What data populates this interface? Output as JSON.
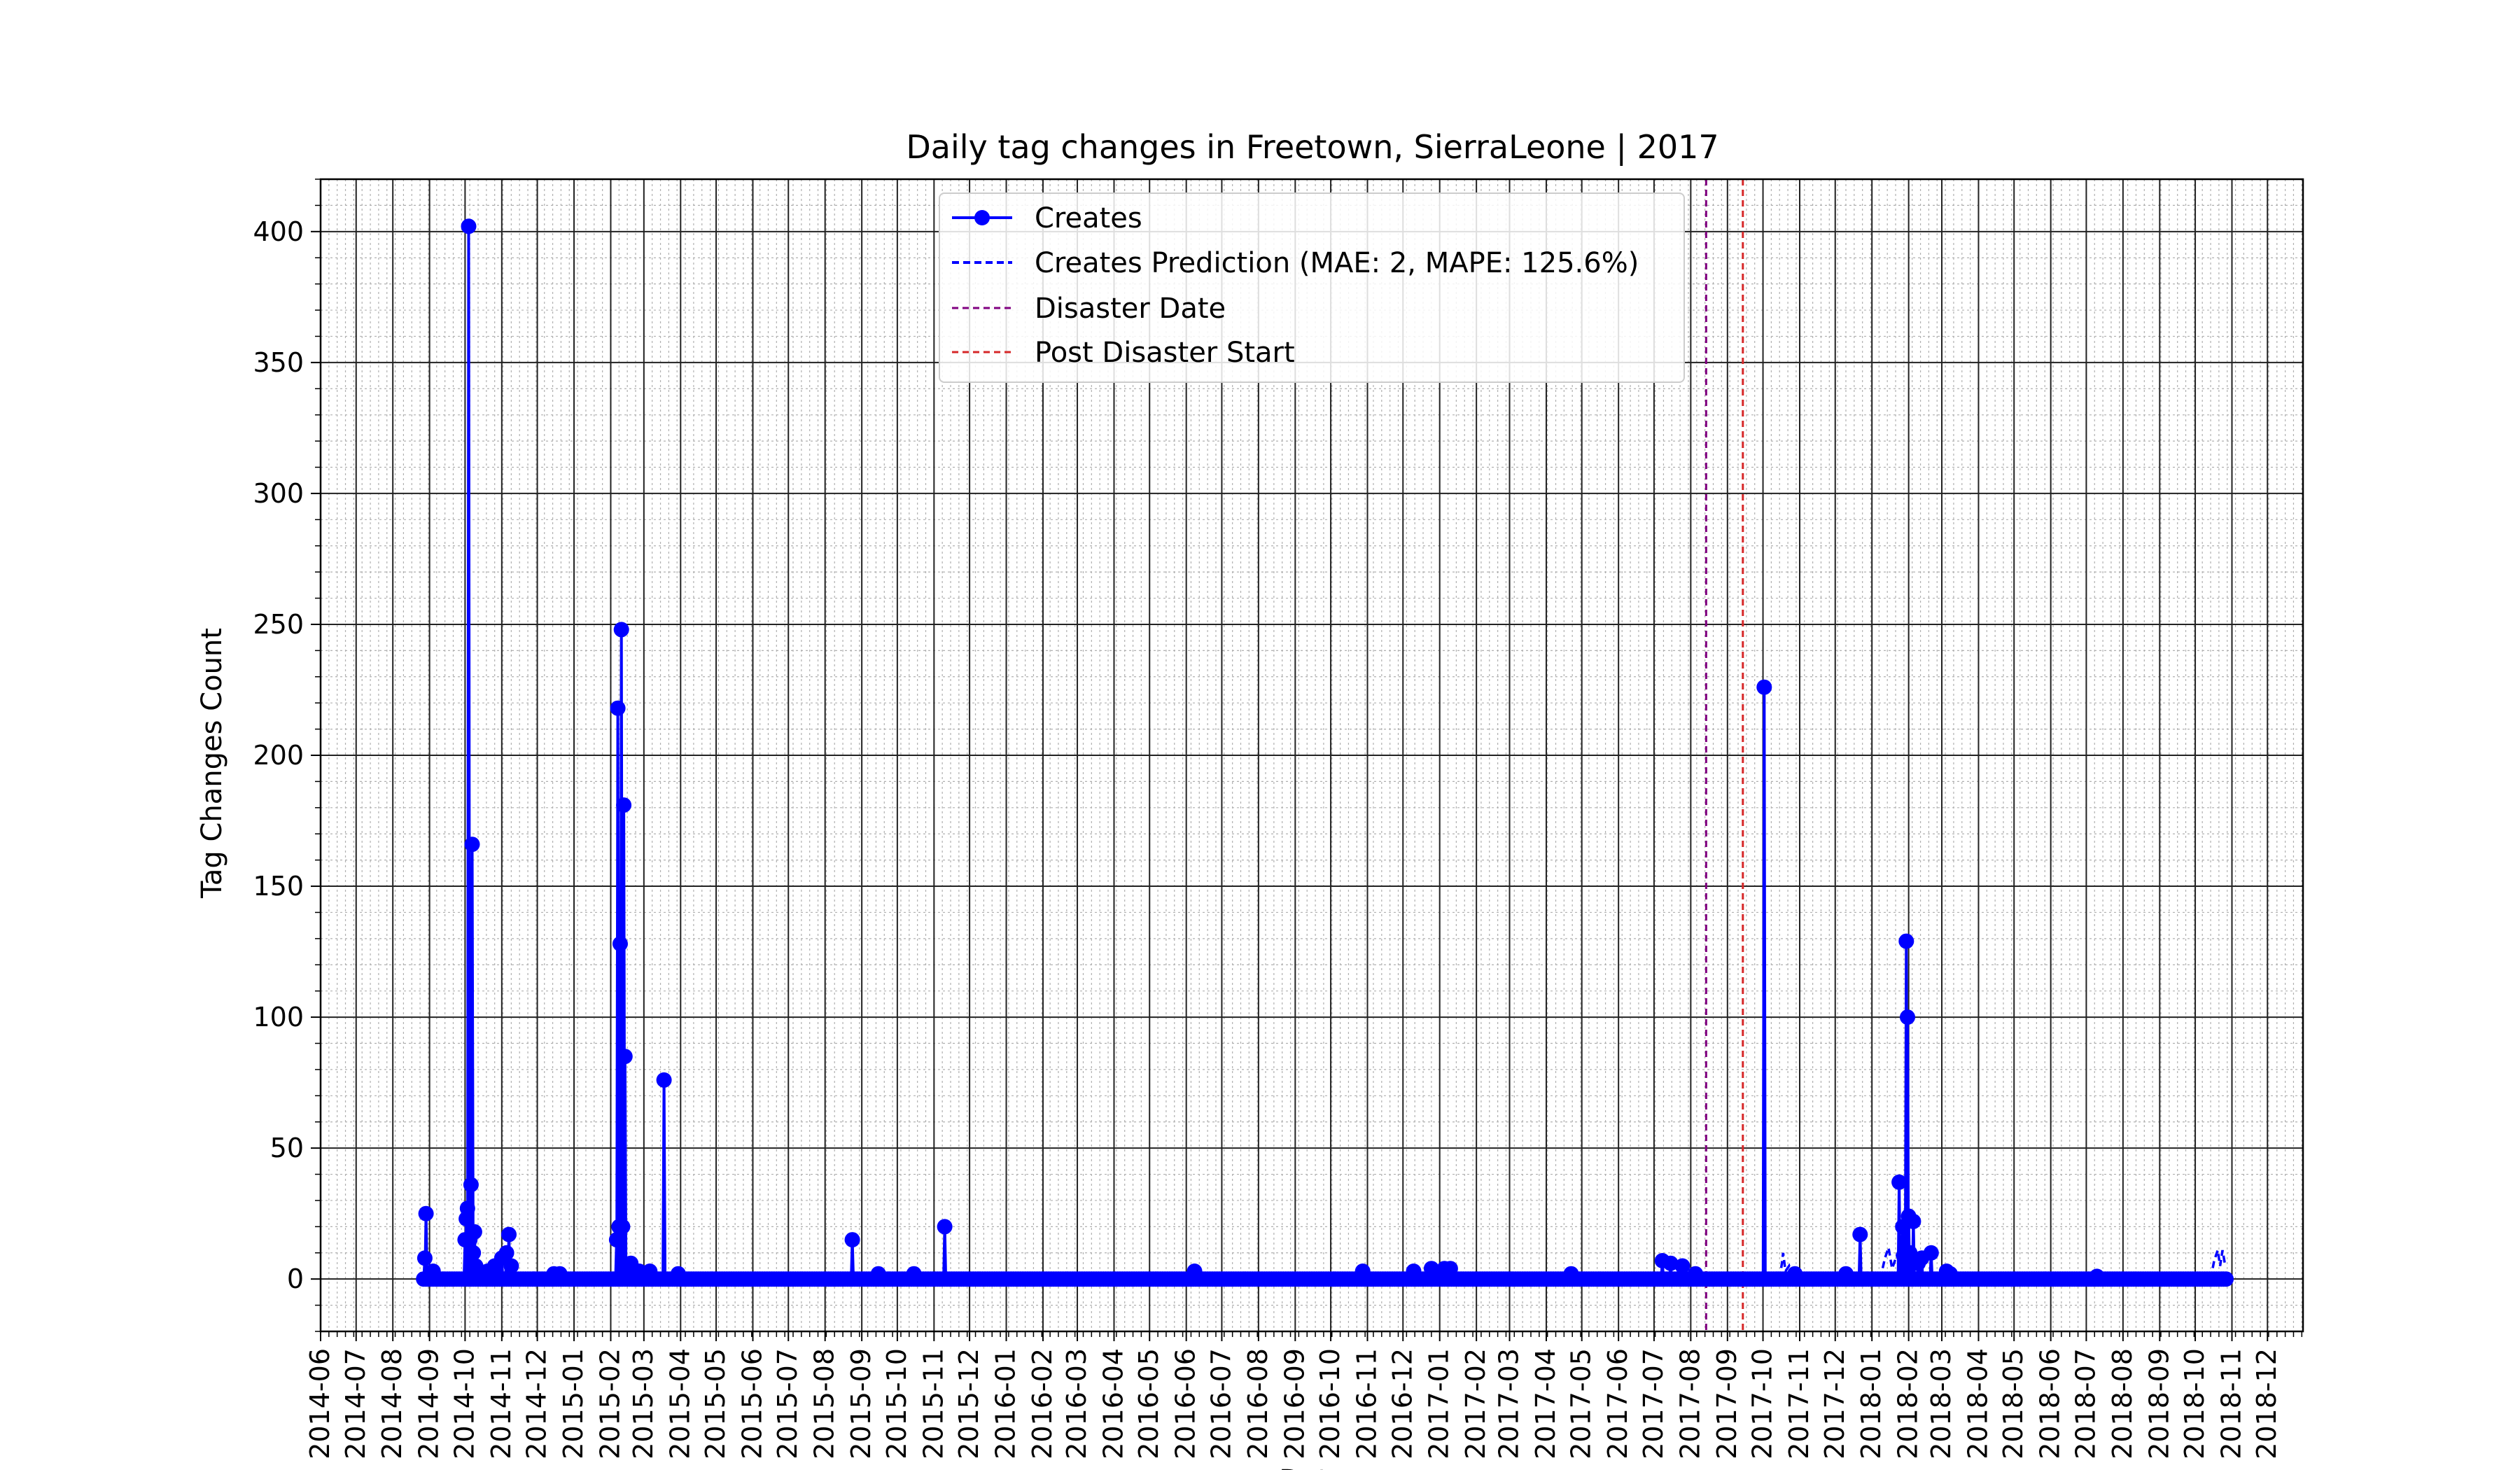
{
  "chart_data": {
    "type": "line",
    "title": "Daily tag changes in Freetown, SierraLeone | 2017",
    "xlabel": "Date",
    "ylabel": "Tag Changes Count",
    "xlim": [
      "2014-06-01",
      "2018-12-31"
    ],
    "ylim": [
      -20,
      420
    ],
    "yticks": [
      0,
      50,
      100,
      150,
      200,
      250,
      300,
      350,
      400
    ],
    "xticks": [
      "2014-06",
      "2014-07",
      "2014-08",
      "2014-09",
      "2014-10",
      "2014-11",
      "2014-12",
      "2015-01",
      "2015-02",
      "2015-03",
      "2015-04",
      "2015-05",
      "2015-06",
      "2015-07",
      "2015-08",
      "2015-09",
      "2015-10",
      "2015-11",
      "2015-12",
      "2016-01",
      "2016-02",
      "2016-03",
      "2016-04",
      "2016-05",
      "2016-06",
      "2016-07",
      "2016-08",
      "2016-09",
      "2016-10",
      "2016-11",
      "2016-12",
      "2017-01",
      "2017-02",
      "2017-03",
      "2017-04",
      "2017-05",
      "2017-06",
      "2017-07",
      "2017-08",
      "2017-09",
      "2017-10",
      "2017-11",
      "2017-12",
      "2018-01",
      "2018-02",
      "2018-03",
      "2018-04",
      "2018-05",
      "2018-06",
      "2018-07",
      "2018-08",
      "2018-09",
      "2018-10",
      "2018-11",
      "2018-12"
    ],
    "grid": true,
    "legend_position": "top-center",
    "colors": {
      "creates": "#0000ff",
      "prediction": "#0000ff",
      "disaster_date": "#800080",
      "post_disaster_start": "#d62728"
    },
    "series": [
      {
        "name": "Creates",
        "style": "solid-with-markers",
        "x_start": "2014-08-27",
        "x_end": "2018-10-28",
        "baseline": 0,
        "spikes": [
          {
            "x": "2014-08-28",
            "y": 8
          },
          {
            "x": "2014-08-29",
            "y": 25
          },
          {
            "x": "2014-09-04",
            "y": 3
          },
          {
            "x": "2014-10-01",
            "y": 15
          },
          {
            "x": "2014-10-02",
            "y": 23
          },
          {
            "x": "2014-10-03",
            "y": 27
          },
          {
            "x": "2014-10-04",
            "y": 402
          },
          {
            "x": "2014-10-05",
            "y": 15
          },
          {
            "x": "2014-10-06",
            "y": 36
          },
          {
            "x": "2014-10-07",
            "y": 166
          },
          {
            "x": "2014-10-08",
            "y": 10
          },
          {
            "x": "2014-10-09",
            "y": 18
          },
          {
            "x": "2014-10-10",
            "y": 5
          },
          {
            "x": "2014-10-20",
            "y": 3
          },
          {
            "x": "2014-10-26",
            "y": 5
          },
          {
            "x": "2014-11-01",
            "y": 8
          },
          {
            "x": "2014-11-05",
            "y": 10
          },
          {
            "x": "2014-11-07",
            "y": 17
          },
          {
            "x": "2014-11-09",
            "y": 5
          },
          {
            "x": "2014-12-15",
            "y": 2
          },
          {
            "x": "2014-12-20",
            "y": 2
          },
          {
            "x": "2015-02-06",
            "y": 15
          },
          {
            "x": "2015-02-07",
            "y": 218
          },
          {
            "x": "2015-02-08",
            "y": 20
          },
          {
            "x": "2015-02-09",
            "y": 128
          },
          {
            "x": "2015-02-10",
            "y": 248
          },
          {
            "x": "2015-02-11",
            "y": 20
          },
          {
            "x": "2015-02-12",
            "y": 181
          },
          {
            "x": "2015-02-13",
            "y": 85
          },
          {
            "x": "2015-02-14",
            "y": 5
          },
          {
            "x": "2015-02-18",
            "y": 6
          },
          {
            "x": "2015-02-25",
            "y": 3
          },
          {
            "x": "2015-03-06",
            "y": 3
          },
          {
            "x": "2015-03-18",
            "y": 76
          },
          {
            "x": "2015-03-30",
            "y": 2
          },
          {
            "x": "2015-08-24",
            "y": 15
          },
          {
            "x": "2015-09-15",
            "y": 2
          },
          {
            "x": "2015-10-15",
            "y": 2
          },
          {
            "x": "2015-11-10",
            "y": 20
          },
          {
            "x": "2016-06-08",
            "y": 3
          },
          {
            "x": "2016-10-28",
            "y": 3
          },
          {
            "x": "2016-12-10",
            "y": 3
          },
          {
            "x": "2016-12-25",
            "y": 4
          },
          {
            "x": "2017-01-05",
            "y": 4
          },
          {
            "x": "2017-01-10",
            "y": 4
          },
          {
            "x": "2017-04-22",
            "y": 2
          },
          {
            "x": "2017-07-08",
            "y": 7
          },
          {
            "x": "2017-07-15",
            "y": 6
          },
          {
            "x": "2017-07-25",
            "y": 5
          },
          {
            "x": "2017-08-05",
            "y": 2
          },
          {
            "x": "2017-10-02",
            "y": 226
          },
          {
            "x": "2017-10-28",
            "y": 2
          },
          {
            "x": "2017-12-10",
            "y": 2
          },
          {
            "x": "2017-12-22",
            "y": 17
          },
          {
            "x": "2018-01-24",
            "y": 37
          },
          {
            "x": "2018-01-27",
            "y": 20
          },
          {
            "x": "2018-01-30",
            "y": 129
          },
          {
            "x": "2018-01-31",
            "y": 100
          },
          {
            "x": "2018-02-01",
            "y": 24
          },
          {
            "x": "2018-02-02",
            "y": 10
          },
          {
            "x": "2018-02-05",
            "y": 22
          },
          {
            "x": "2018-02-09",
            "y": 6
          },
          {
            "x": "2018-02-12",
            "y": 8
          },
          {
            "x": "2018-02-20",
            "y": 10
          },
          {
            "x": "2018-03-05",
            "y": 3
          },
          {
            "x": "2018-03-08",
            "y": 2
          },
          {
            "x": "2018-07-10",
            "y": 1
          }
        ]
      },
      {
        "name": "Creates Prediction (MAE: 2, MAPE: 125.6%)",
        "style": "dashed",
        "points": [
          {
            "x": "2017-10-15",
            "y": 0
          },
          {
            "x": "2017-10-17",
            "y": 6
          },
          {
            "x": "2017-10-18",
            "y": 10
          },
          {
            "x": "2017-10-20",
            "y": 3
          },
          {
            "x": "2017-10-23",
            "y": 5
          },
          {
            "x": "2017-10-26",
            "y": 0
          },
          {
            "x": "2018-01-08",
            "y": 0
          },
          {
            "x": "2018-01-12",
            "y": 8
          },
          {
            "x": "2018-01-15",
            "y": 12
          },
          {
            "x": "2018-01-18",
            "y": 4
          },
          {
            "x": "2018-01-22",
            "y": 9
          },
          {
            "x": "2018-01-25",
            "y": 5
          },
          {
            "x": "2018-10-14",
            "y": 0
          },
          {
            "x": "2018-10-17",
            "y": 7
          },
          {
            "x": "2018-10-20",
            "y": 11
          },
          {
            "x": "2018-10-22",
            "y": 5
          },
          {
            "x": "2018-10-24",
            "y": 11
          },
          {
            "x": "2018-10-26",
            "y": 6
          }
        ]
      }
    ],
    "vlines": [
      {
        "name": "Disaster Date",
        "x": "2017-08-14",
        "style": "dashed"
      },
      {
        "name": "Post Disaster Start",
        "x": "2017-09-14",
        "style": "dashed"
      }
    ],
    "legend": [
      {
        "label": "Creates",
        "kind": "line-marker"
      },
      {
        "label": "Creates Prediction (MAE: 2, MAPE: 125.6%)",
        "kind": "dashed"
      },
      {
        "label": "Disaster Date",
        "kind": "dashed-thin-purple"
      },
      {
        "label": "Post Disaster Start",
        "kind": "dashed-thin-red"
      }
    ]
  }
}
